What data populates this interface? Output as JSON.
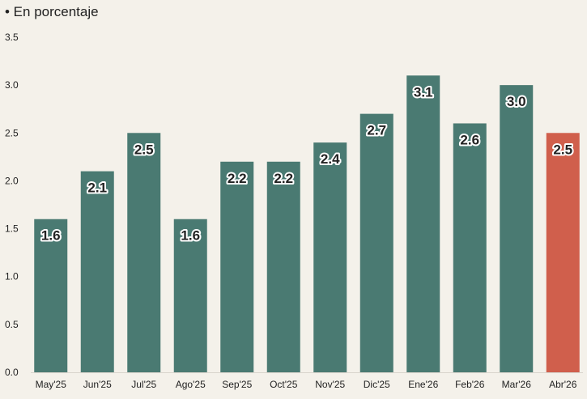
{
  "chart_data": {
    "type": "bar",
    "subtitle": "• En porcentaje",
    "categories": [
      "May'25",
      "Jun'25",
      "Jul'25",
      "Ago'25",
      "Sep'25",
      "Oct'25",
      "Nov'25",
      "Dic'25",
      "Ene'26",
      "Feb'26",
      "Mar'26",
      "Abr'26"
    ],
    "values": [
      1.6,
      2.1,
      2.5,
      1.6,
      2.2,
      2.2,
      2.4,
      2.7,
      3.1,
      2.6,
      3.0,
      2.5
    ],
    "data_labels": [
      "1.6",
      "2.1",
      "2.5",
      "1.6",
      "2.2",
      "2.2",
      "2.4",
      "2.7",
      "3.1",
      "2.6",
      "3.0",
      "2.5"
    ],
    "y_ticks": [
      "0.0",
      "0.5",
      "1.0",
      "1.5",
      "2.0",
      "2.5",
      "3.0",
      "3.5"
    ],
    "ylim": [
      0,
      3.5
    ],
    "grid": false,
    "colors": {
      "default": "#4a7a72",
      "highlight": "#d05f4c"
    },
    "highlight_index": 11
  }
}
